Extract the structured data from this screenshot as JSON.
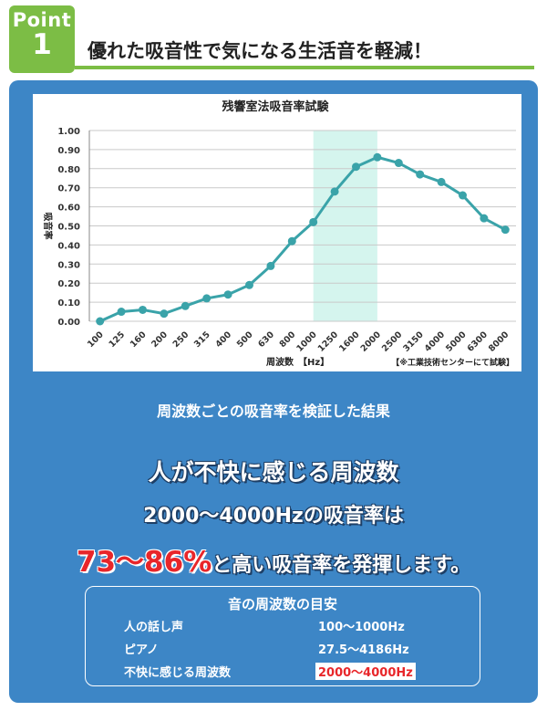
{
  "header": {
    "point_word": "Point",
    "point_number": "1",
    "title": "優れた吸音性で気になる生活音を軽減！",
    "accent_color": "#7cbd45"
  },
  "panel": {
    "bg_color": "#3d86c6"
  },
  "chart_data": {
    "type": "line",
    "title": "残響室法吸音率試験",
    "xlabel": "周波数　【Hz】",
    "ylabel": "吸音率",
    "note": "【※工業技術センターにて試験】",
    "categories": [
      "100",
      "125",
      "160",
      "200",
      "250",
      "315",
      "400",
      "500",
      "630",
      "800",
      "1000",
      "1250",
      "1600",
      "2000",
      "2500",
      "3150",
      "4000",
      "5000",
      "6300",
      "8000"
    ],
    "values": [
      0.0,
      0.05,
      0.06,
      0.04,
      0.08,
      0.12,
      0.14,
      0.19,
      0.29,
      0.42,
      0.52,
      0.68,
      0.81,
      0.86,
      0.83,
      0.77,
      0.73,
      0.66,
      0.54,
      0.48
    ],
    "ylim": [
      0.0,
      1.0
    ],
    "yticks": [
      "0.00",
      "0.10",
      "0.20",
      "0.30",
      "0.40",
      "0.50",
      "0.60",
      "0.70",
      "0.80",
      "0.90",
      "1.00"
    ],
    "grid": true,
    "highlight_range": [
      "1000",
      "2000"
    ],
    "line_color": "#3aa3a9",
    "highlight_color": "#d5f5ee"
  },
  "caption": "周波数ごとの吸音率を検証した結果",
  "headline": {
    "line1": "人が不快に感じる周波数",
    "line2": "2000〜4000Hzの吸音率は",
    "line3_emph": "73〜86%",
    "line3_rest": "と高い吸音率を発揮します。"
  },
  "guide": {
    "title": "音の周波数の目安",
    "rows": [
      {
        "label": "人の話し声",
        "value": "100〜1000Hz"
      },
      {
        "label": "ピアノ",
        "value": "27.5〜4186Hz"
      },
      {
        "label": "不快に感じる周波数",
        "value": "2000〜4000Hz"
      }
    ],
    "emphasis_color": "#e8262a"
  }
}
